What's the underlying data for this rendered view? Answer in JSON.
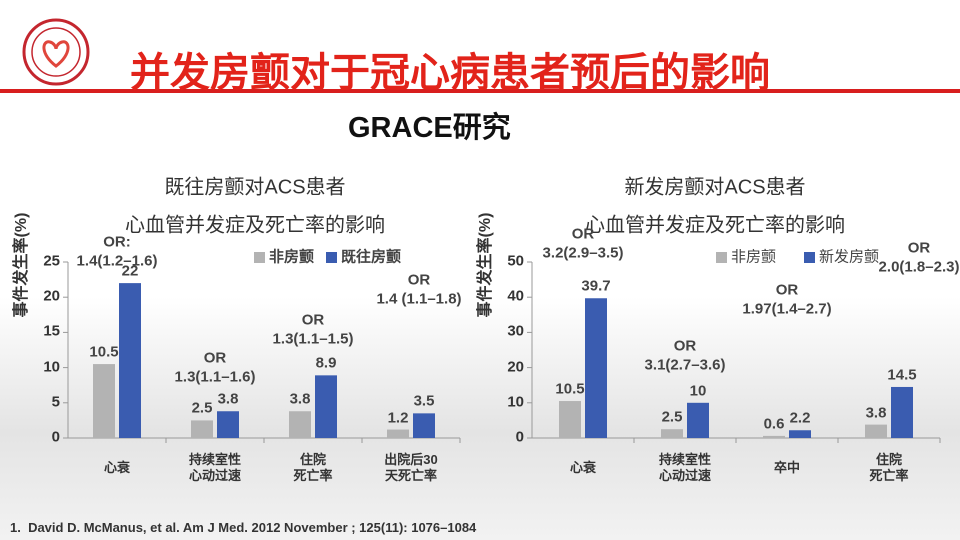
{
  "header": {
    "title": "并发房颤对于冠心病患者预后的影响",
    "subtitle": "GRACE研究"
  },
  "chart_data": [
    {
      "type": "bar",
      "title": [
        "既往房颤对ACS患者",
        "心血管并发症及死亡率的影响"
      ],
      "y_label": "事件发生率(%)",
      "categories": [
        "心衰",
        "持续室性\n心动过速",
        "住院\n死亡率",
        "出院后30\n天死亡率"
      ],
      "series": [
        {
          "name": "非房颤",
          "color": "#b3b3b3",
          "values": [
            10.5,
            2.5,
            3.8,
            1.2
          ]
        },
        {
          "name": "既往房颤",
          "color": "#3a5cb0",
          "values": [
            22,
            3.8,
            8.9,
            3.5
          ]
        }
      ],
      "annotations": [
        "OR:\n1.4(1.2–1.6)",
        "OR\n1.3(1.1–1.6)",
        "OR\n1.3(1.1–1.5)",
        "OR\n1.4 (1.1–1.8)"
      ],
      "ylim": [
        0,
        25
      ],
      "yticks": [
        0,
        5,
        10,
        15,
        20,
        25
      ]
    },
    {
      "type": "bar",
      "title": [
        "新发房颤对ACS患者",
        "心血管并发症及死亡率的影响"
      ],
      "y_label": "事件发生率(%)",
      "categories": [
        "心衰",
        "持续室性\n心动过速",
        "卒中",
        "住院\n死亡率"
      ],
      "series": [
        {
          "name": "非房颤",
          "color": "#b3b3b3",
          "values": [
            10.5,
            2.5,
            0.6,
            3.8
          ]
        },
        {
          "name": "新发房颤",
          "color": "#3a5cb0",
          "values": [
            39.7,
            10,
            2.2,
            14.5
          ]
        }
      ],
      "annotations": [
        "OR\n3.2(2.9–3.5)",
        "OR\n3.1(2.7–3.6)",
        "OR\n1.97(1.4–2.7)",
        "OR\n2.0(1.8–2.3)"
      ],
      "ylim": [
        0,
        50
      ],
      "yticks": [
        0,
        10,
        20,
        30,
        40,
        50
      ]
    }
  ],
  "footnote": "1.  David D. McManus, et al. Am J Med. 2012 November ; 125(11): 1076–1084"
}
